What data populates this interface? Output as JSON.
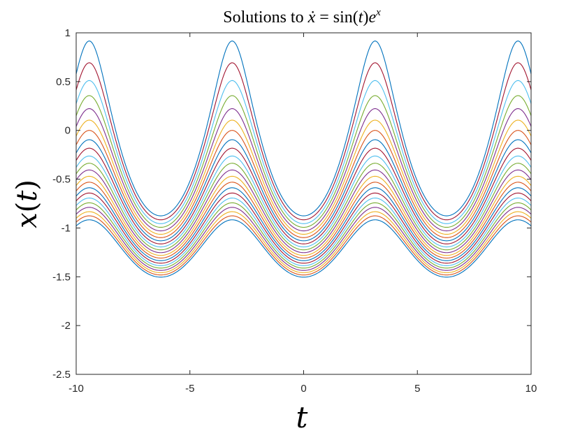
{
  "chart_data": {
    "type": "line",
    "title": "Solutions to ẋ = sin(t)eˣ",
    "title_parts": {
      "prefix": "Solutions to ",
      "xdot": "ẋ",
      "eq": " = sin(",
      "t": "t",
      "mid": ")",
      "e": "e",
      "sup": "x"
    },
    "xlabel": "t",
    "ylabel": "x(t)",
    "ylabel_parts": {
      "x": "x",
      "open": "(",
      "t": "t",
      "close": ")"
    },
    "xlim": [
      -10,
      10
    ],
    "ylim": [
      -2.5,
      1
    ],
    "xticks": [
      -10,
      -5,
      0,
      5,
      10
    ],
    "xtick_labels": [
      "-10",
      "-5",
      "0",
      "5",
      "10"
    ],
    "yticks": [
      -2.5,
      -2,
      -1.5,
      -1,
      -0.5,
      0,
      0.5,
      1
    ],
    "ytick_labels": [
      "-2.5",
      "-2",
      "-1.5",
      "-1",
      "-0.5",
      "0",
      "0.5",
      "1"
    ],
    "grid": false,
    "series_formula": "x(t) = -ln(cos(t) + C)",
    "series_C": [
      3.5,
      3.4,
      3.3,
      3.2,
      3.1,
      3.0,
      2.9,
      2.8,
      2.7,
      2.6,
      2.5,
      2.4,
      2.3,
      2.2,
      2.1,
      2.0,
      1.9,
      1.8,
      1.7,
      1.6,
      1.5,
      1.4
    ],
    "series_colors": [
      "#0072BD",
      "#D95319",
      "#EDB120",
      "#7E2F8E",
      "#77AC30",
      "#4DBEEE",
      "#A2142F"
    ]
  }
}
